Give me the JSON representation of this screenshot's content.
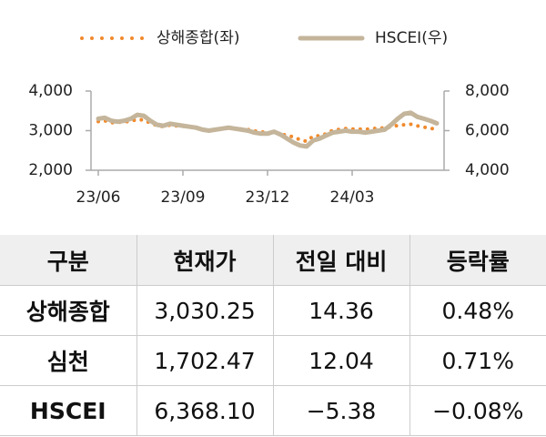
{
  "chart_data": {
    "type": "line",
    "categories": [
      "23/06",
      null,
      null,
      null,
      null,
      null,
      null,
      null,
      null,
      null,
      null,
      null,
      null,
      "23/09",
      null,
      null,
      null,
      null,
      null,
      null,
      null,
      null,
      null,
      null,
      null,
      null,
      "23/12",
      null,
      null,
      null,
      null,
      null,
      null,
      null,
      null,
      null,
      null,
      null,
      null,
      "24/03",
      null,
      null,
      null,
      null,
      null,
      null,
      null,
      null,
      null,
      null,
      null,
      null,
      null
    ],
    "series": [
      {
        "name": "상해종합(좌)",
        "color": "#f08a2c",
        "style": "dotted",
        "values": [
          3230,
          3250,
          3200,
          3210,
          3220,
          3240,
          3280,
          3270,
          3190,
          3130,
          3100,
          3140,
          3120,
          3110,
          3100,
          3080,
          3030,
          3010,
          3020,
          3040,
          3060,
          3050,
          3040,
          3030,
          2990,
          2970,
          2950,
          2960,
          2920,
          2880,
          2840,
          2770,
          2730,
          2860,
          2870,
          2920,
          3010,
          3030,
          3050,
          3040,
          3040,
          3030,
          3050,
          3060,
          3070,
          3100,
          3130,
          3150,
          3160,
          3120,
          3090,
          3060,
          3030
        ]
      },
      {
        "name": "HSCEI(우)",
        "color": "#c4b59b",
        "style": "solid",
        "axis": "y2",
        "values": [
          6600,
          6650,
          6500,
          6450,
          6500,
          6600,
          6800,
          6750,
          6500,
          6300,
          6250,
          6350,
          6300,
          6250,
          6200,
          6150,
          6050,
          6000,
          6050,
          6100,
          6150,
          6100,
          6050,
          6000,
          5900,
          5850,
          5850,
          5950,
          5800,
          5600,
          5400,
          5250,
          5200,
          5500,
          5600,
          5750,
          5900,
          5950,
          6000,
          5950,
          5950,
          5900,
          5950,
          6000,
          6050,
          6300,
          6600,
          6850,
          6900,
          6700,
          6600,
          6500,
          6368
        ]
      }
    ],
    "ylim": [
      2000,
      4000
    ],
    "yticks": [
      {
        "value": 2000,
        "label": "2,000"
      },
      {
        "value": 3000,
        "label": "3,000"
      },
      {
        "value": 4000,
        "label": "4,000"
      }
    ],
    "y2lim": [
      4000,
      8000
    ],
    "y2ticks": [
      {
        "value": 4000,
        "label": "4,000"
      },
      {
        "value": 6000,
        "label": "6,000"
      },
      {
        "value": 8000,
        "label": "8,000"
      }
    ],
    "legend": "top"
  },
  "table": {
    "header": [
      "구분",
      "현재가",
      "전일 대비",
      "등락률"
    ],
    "rows": [
      [
        "상해종합",
        "3,030.25",
        "14.36",
        "0.48%"
      ],
      [
        "심천",
        "1,702.47",
        "12.04",
        "0.71%"
      ],
      [
        "HSCEI",
        "6,368.10",
        "−5.38",
        "−0.08%"
      ]
    ]
  }
}
